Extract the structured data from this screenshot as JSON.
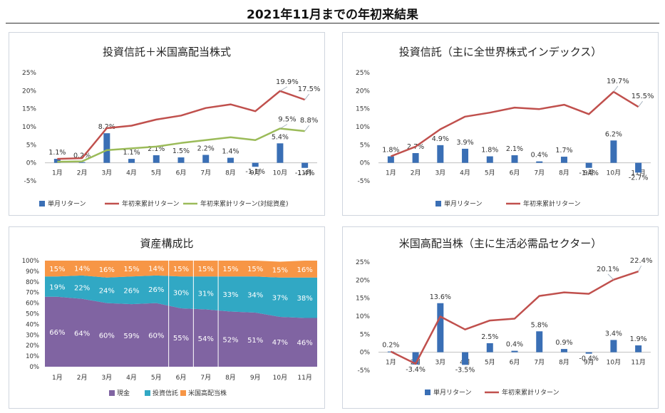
{
  "page": {
    "title": "2021年11月までの年初来結果"
  },
  "chart_data": [
    {
      "id": "p1",
      "type": "bar+line",
      "title": "投資信託＋米国高配当株式",
      "categories": [
        "1月",
        "2月",
        "3月",
        "4月",
        "5月",
        "6月",
        "7月",
        "8月",
        "9月",
        "10月",
        "11月"
      ],
      "yticks": [
        "25%",
        "20%",
        "15%",
        "10%",
        "5%",
        "0%",
        "-5%"
      ],
      "ylim": [
        -5,
        25
      ],
      "series": [
        {
          "name": "単月リターン",
          "kind": "bar",
          "color": "#3a6fb5",
          "values": [
            1.1,
            0.2,
            8.2,
            1.1,
            2.1,
            1.5,
            2.2,
            1.4,
            -1.1,
            5.4,
            -1.4
          ],
          "labels": [
            "1.1%",
            "0.2%",
            "8.2%",
            "1.1%",
            "2.1%",
            "1.5%",
            "2.2%",
            "1.4%",
            "-1.1%",
            "5.4%",
            "-1.4%"
          ]
        },
        {
          "name": "年初来累計リターン",
          "kind": "line",
          "color": "#c0504d",
          "values": [
            1.1,
            1.3,
            9.6,
            10.3,
            12.0,
            13.1,
            15.2,
            16.2,
            14.3,
            19.9,
            17.5
          ],
          "labels": [
            "",
            "",
            "",
            "",
            "",
            "",
            "",
            "",
            "",
            "19.9%",
            "17.5%"
          ]
        },
        {
          "name": "年初来累計リターン(対総資産)",
          "kind": "line",
          "color": "#9bbb59",
          "values": [
            0.3,
            0.4,
            3.5,
            4.0,
            4.5,
            5.5,
            6.3,
            7.1,
            6.3,
            9.5,
            8.8
          ],
          "labels": [
            "",
            "",
            "",
            "",
            "",
            "",
            "",
            "",
            "",
            "9.5%",
            "8.8%"
          ]
        }
      ]
    },
    {
      "id": "p2",
      "type": "bar+line",
      "title": "投資信託（主に全世界株式インデックス）",
      "categories": [
        "1月",
        "2月",
        "3月",
        "4月",
        "5月",
        "6月",
        "7月",
        "8月",
        "9月",
        "10月",
        "11月"
      ],
      "yticks": [
        "25%",
        "20%",
        "15%",
        "10%",
        "5%",
        "0%",
        "-5%"
      ],
      "ylim": [
        -5,
        25
      ],
      "series": [
        {
          "name": "単月リターン",
          "kind": "bar",
          "color": "#3a6fb5",
          "values": [
            1.8,
            2.7,
            4.9,
            3.9,
            1.8,
            2.1,
            0.4,
            1.7,
            -1.4,
            6.2,
            -2.7
          ],
          "labels": [
            "1.8%",
            "2.7%",
            "4.9%",
            "3.9%",
            "1.8%",
            "2.1%",
            "0.4%",
            "1.7%",
            "-1.4%",
            "6.2%",
            "-2.7%"
          ]
        },
        {
          "name": "年初来累計リターン",
          "kind": "line",
          "color": "#c0504d",
          "values": [
            1.8,
            4.5,
            9.3,
            12.8,
            13.9,
            15.3,
            14.9,
            16.1,
            13.5,
            19.7,
            15.5
          ],
          "labels": [
            "",
            "",
            "",
            "",
            "",
            "",
            "",
            "",
            "",
            "19.7%",
            "15.5%"
          ]
        }
      ]
    },
    {
      "id": "p3",
      "type": "area",
      "title": "資産構成比",
      "categories": [
        "1月",
        "2月",
        "3月",
        "4月",
        "5月",
        "6月",
        "7月",
        "8月",
        "9月",
        "10月",
        "11月"
      ],
      "yticks": [
        "100%",
        "90%",
        "80%",
        "70%",
        "60%",
        "50%",
        "40%",
        "30%",
        "20%",
        "10%",
        "0%"
      ],
      "ylim": [
        0,
        100
      ],
      "series": [
        {
          "name": "現金",
          "color": "#8064a2",
          "values": [
            66,
            64,
            60,
            59,
            60,
            55,
            54,
            52,
            51,
            47,
            46
          ],
          "labels": [
            "66%",
            "64%",
            "60%",
            "59%",
            "60%",
            "55%",
            "54%",
            "52%",
            "51%",
            "47%",
            "46%"
          ]
        },
        {
          "name": "投資信託",
          "color": "#31a8c4",
          "values": [
            19,
            22,
            24,
            26,
            26,
            30,
            31,
            33,
            34,
            37,
            38
          ],
          "labels": [
            "19%",
            "22%",
            "24%",
            "26%",
            "26%",
            "30%",
            "31%",
            "33%",
            "34%",
            "37%",
            "38%"
          ]
        },
        {
          "name": "米国高配当株",
          "color": "#f79646",
          "values": [
            15,
            14,
            16,
            15,
            14,
            15,
            15,
            15,
            15,
            15,
            16
          ],
          "labels": [
            "15%",
            "14%",
            "16%",
            "15%",
            "14%",
            "15%",
            "15%",
            "15%",
            "15%",
            "15%",
            "16%"
          ]
        }
      ]
    },
    {
      "id": "p4",
      "type": "bar+line",
      "title": "米国高配当株（主に生活必需品セクター）",
      "categories": [
        "1月",
        "2月",
        "3月",
        "4月",
        "5月",
        "6月",
        "7月",
        "8月",
        "9月",
        "10月",
        "11月"
      ],
      "yticks": [
        "25%",
        "20%",
        "15%",
        "10%",
        "5%",
        "0%",
        "-5%"
      ],
      "ylim": [
        -5,
        25
      ],
      "series": [
        {
          "name": "単月リターン",
          "kind": "bar",
          "color": "#3a6fb5",
          "values": [
            0.2,
            -3.4,
            13.6,
            -3.5,
            2.5,
            0.4,
            5.8,
            0.9,
            -0.4,
            3.4,
            1.9
          ],
          "labels": [
            "0.2%",
            "-3.4%",
            "13.6%",
            "-3.5%",
            "2.5%",
            "0.4%",
            "5.8%",
            "0.9%",
            "-0.4%",
            "3.4%",
            "1.9%"
          ]
        },
        {
          "name": "年初来累計リターン",
          "kind": "line",
          "color": "#c0504d",
          "values": [
            0.2,
            -3.2,
            9.9,
            6.3,
            8.8,
            9.3,
            15.6,
            16.6,
            16.2,
            20.1,
            22.4
          ],
          "labels": [
            "",
            "",
            "",
            "",
            "",
            "",
            "",
            "",
            "",
            "20.1%",
            "22.4%"
          ]
        }
      ]
    }
  ]
}
